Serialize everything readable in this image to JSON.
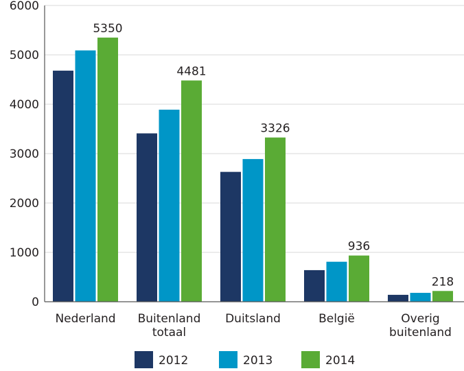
{
  "chart_data": {
    "type": "bar",
    "title": "",
    "xlabel": "",
    "ylabel": "",
    "ylim": [
      0,
      6000
    ],
    "yticks": [
      0,
      1000,
      2000,
      3000,
      4000,
      5000,
      6000
    ],
    "grid": true,
    "legend_position": "bottom",
    "categories": [
      [
        "Nederland"
      ],
      [
        "Buitenland",
        "totaal"
      ],
      [
        "Duitsland"
      ],
      [
        "België"
      ],
      [
        "Overig",
        "buitenland"
      ]
    ],
    "series": [
      {
        "name": "2012",
        "color": "#1d3764",
        "values": [
          4680,
          3410,
          2630,
          640,
          140
        ]
      },
      {
        "name": "2013",
        "color": "#0096c7",
        "values": [
          5090,
          3890,
          2890,
          810,
          180
        ]
      },
      {
        "name": "2014",
        "color": "#5aab35",
        "values": [
          5350,
          4481,
          3326,
          936,
          218
        ],
        "data_labels": [
          "5350",
          "4481",
          "3326",
          "936",
          "218"
        ]
      }
    ]
  }
}
